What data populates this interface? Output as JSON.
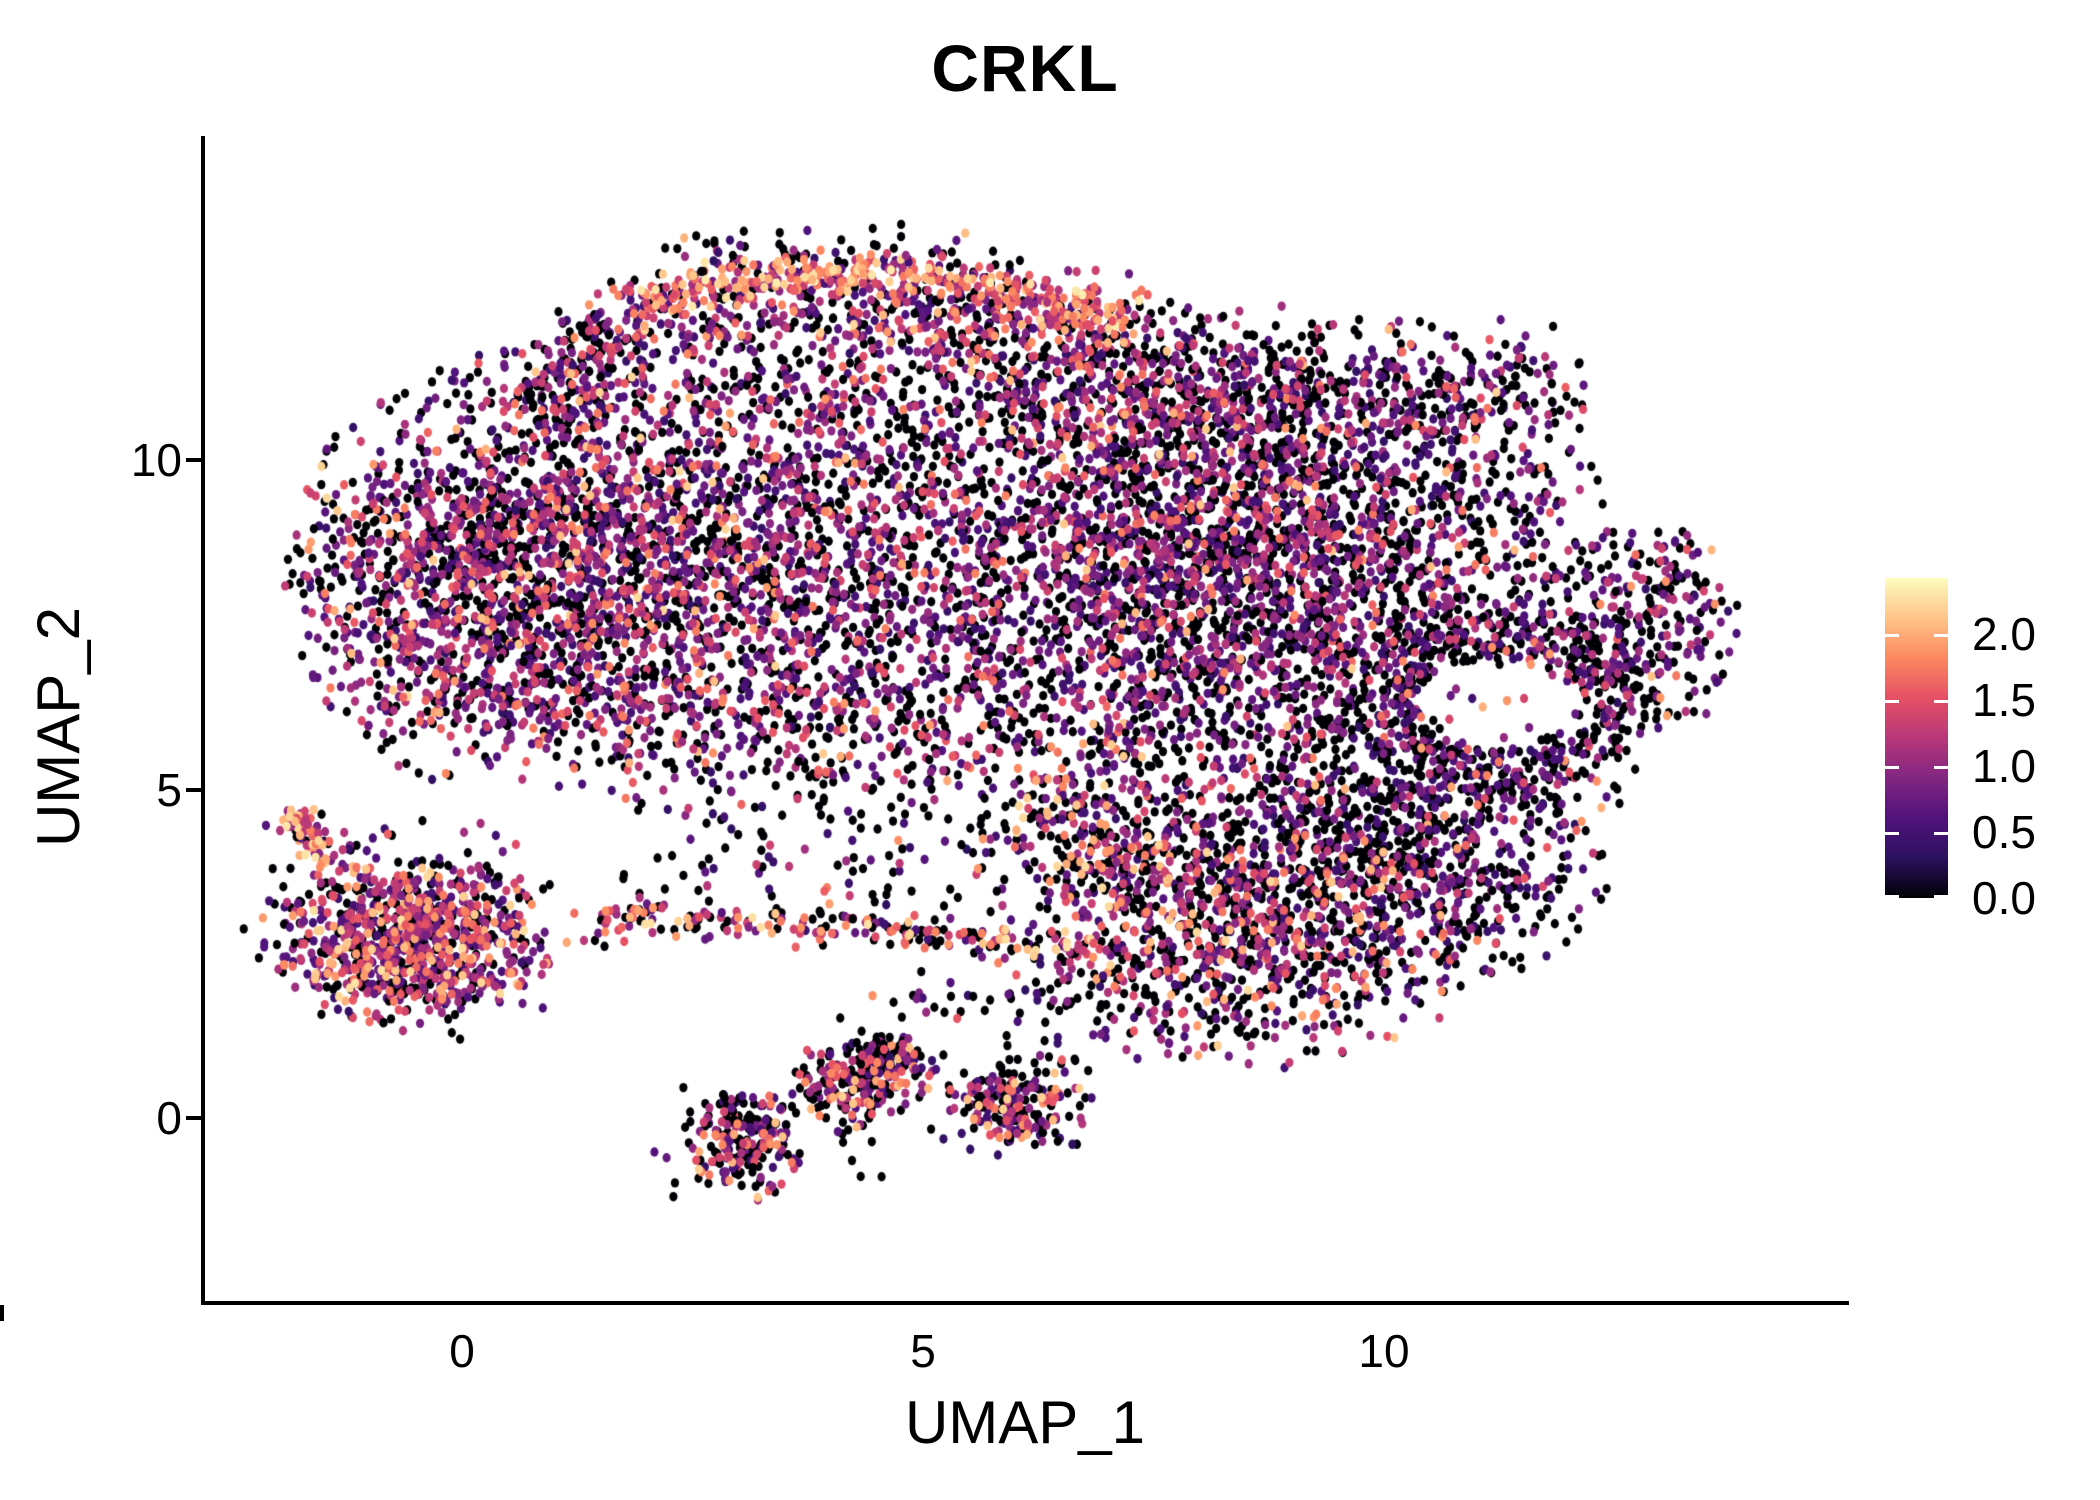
{
  "title": "CRKL",
  "axes": {
    "x_label": "UMAP_1",
    "y_label": "UMAP_2",
    "x_ticks": [
      {
        "label": "0",
        "u": 0
      },
      {
        "label": "5",
        "u": 5
      },
      {
        "label": "10",
        "u": 10
      }
    ],
    "y_ticks": [
      {
        "label": "10",
        "v": 10
      },
      {
        "label": "5",
        "v": 5
      },
      {
        "label": "0",
        "v": 0
      }
    ]
  },
  "legend": {
    "labels": [
      "2.0",
      "1.5",
      "1.0",
      "0.5",
      "0.0"
    ],
    "values": [
      2.0,
      1.5,
      1.0,
      0.5,
      0.0
    ],
    "min": 0,
    "max": 2.42
  },
  "colors": {
    "background": "#ffffff",
    "axis": "#000000",
    "text": "#000000"
  },
  "chart_data": {
    "type": "scatter",
    "title": "CRKL",
    "xlabel": "UMAP_1",
    "ylabel": "UMAP_2",
    "x_ticks": [
      0,
      5,
      10
    ],
    "y_ticks": [
      0,
      5,
      10
    ],
    "xlim": [
      -2.8,
      15.0
    ],
    "ylim": [
      -2.8,
      14.9
    ],
    "grid": false,
    "legend_position": "right",
    "point_radius_px": {
      "rx": 4.1,
      "ry": 4.7
    },
    "colorbar": {
      "orientation": "vertical",
      "range": [
        0,
        2.42
      ],
      "label_values": [
        2.0,
        1.5,
        1.0,
        0.5,
        0.0
      ],
      "colormap": "magma",
      "stops": [
        [
          0.0,
          "#000004"
        ],
        [
          0.125,
          "#2c115f"
        ],
        [
          0.25,
          "#51127c"
        ],
        [
          0.375,
          "#822681"
        ],
        [
          0.5,
          "#b73779"
        ],
        [
          0.625,
          "#e55064"
        ],
        [
          0.75,
          "#fc8961"
        ],
        [
          0.875,
          "#fec488"
        ],
        [
          1.0,
          "#fcfdbf"
        ]
      ]
    },
    "hole": {
      "cx": 11.2,
      "cy": 6.3,
      "rx": 0.82,
      "ry": 0.66
    },
    "expression_mixes": {
      "main": [
        [
          0.36,
          0,
          0
        ],
        [
          0.27,
          0.35,
          0.85
        ],
        [
          0.23,
          0.85,
          1.35
        ],
        [
          0.11,
          1.35,
          1.8
        ],
        [
          0.03,
          1.8,
          2.25
        ]
      ],
      "right": [
        [
          0.44,
          0,
          0
        ],
        [
          0.27,
          0.35,
          0.85
        ],
        [
          0.19,
          0.85,
          1.35
        ],
        [
          0.08,
          1.35,
          1.8
        ],
        [
          0.02,
          1.8,
          2.2
        ]
      ],
      "band": [
        [
          0.05,
          0,
          0
        ],
        [
          0.1,
          0.5,
          1.0
        ],
        [
          0.25,
          1.0,
          1.5
        ],
        [
          0.4,
          1.5,
          2.0
        ],
        [
          0.2,
          2.0,
          2.35
        ]
      ],
      "bandunder": [
        [
          0.3,
          0,
          0
        ],
        [
          0.2,
          0.4,
          0.9
        ],
        [
          0.25,
          0.9,
          1.4
        ],
        [
          0.17,
          1.4,
          1.9
        ],
        [
          0.08,
          1.9,
          2.25
        ]
      ],
      "bump": [
        [
          0.42,
          0,
          0
        ],
        [
          0.25,
          0.35,
          0.85
        ],
        [
          0.2,
          0.85,
          1.35
        ],
        [
          0.1,
          1.35,
          1.8
        ],
        [
          0.03,
          1.8,
          2.2
        ]
      ],
      "dark": [
        [
          0.55,
          0,
          0
        ],
        [
          0.27,
          0.3,
          0.8
        ],
        [
          0.13,
          0.8,
          1.3
        ],
        [
          0.04,
          1.3,
          1.7
        ],
        [
          0.01,
          1.7,
          2.0
        ]
      ],
      "tip": [
        [
          0.45,
          0,
          0
        ],
        [
          0.3,
          0.4,
          0.9
        ],
        [
          0.18,
          0.9,
          1.4
        ],
        [
          0.05,
          1.4,
          1.9
        ],
        [
          0.02,
          1.9,
          2.2
        ]
      ],
      "belt": [
        [
          0.45,
          0,
          0
        ],
        [
          0.25,
          0.35,
          0.85
        ],
        [
          0.18,
          0.85,
          1.35
        ],
        [
          0.09,
          1.35,
          1.8
        ],
        [
          0.03,
          1.8,
          2.2
        ]
      ],
      "diag": [
        [
          0.4,
          0,
          0
        ],
        [
          0.16,
          0.4,
          0.9
        ],
        [
          0.18,
          0.9,
          1.4
        ],
        [
          0.16,
          1.4,
          1.9
        ],
        [
          0.1,
          1.9,
          2.25
        ]
      ],
      "wing": [
        [
          0.42,
          0,
          0
        ],
        [
          0.21,
          0.35,
          0.85
        ],
        [
          0.19,
          0.85,
          1.35
        ],
        [
          0.12,
          1.35,
          1.85
        ],
        [
          0.06,
          1.85,
          2.25
        ]
      ],
      "sparse": [
        [
          0.55,
          0,
          0
        ],
        [
          0.25,
          0.3,
          0.8
        ],
        [
          0.13,
          0.8,
          1.3
        ],
        [
          0.05,
          1.3,
          1.8
        ],
        [
          0.02,
          1.8,
          2.1
        ]
      ],
      "bridge": [
        [
          0.33,
          0,
          0
        ],
        [
          0.15,
          0.4,
          0.9
        ],
        [
          0.2,
          0.9,
          1.4
        ],
        [
          0.2,
          1.4,
          1.9
        ],
        [
          0.12,
          1.9,
          2.3
        ]
      ],
      "leftc": [
        [
          0.25,
          0,
          0
        ],
        [
          0.25,
          0.4,
          0.9
        ],
        [
          0.28,
          0.9,
          1.4
        ],
        [
          0.16,
          1.4,
          1.9
        ],
        [
          0.06,
          1.9,
          2.3
        ]
      ],
      "leftfringe": [
        [
          0.4,
          0,
          0
        ],
        [
          0.25,
          0.35,
          0.85
        ],
        [
          0.2,
          0.85,
          1.35
        ],
        [
          0.1,
          1.35,
          1.85
        ],
        [
          0.05,
          1.85,
          2.2
        ]
      ],
      "arm": [
        [
          0.1,
          0,
          0
        ],
        [
          0.15,
          0.5,
          1.0
        ],
        [
          0.25,
          1.0,
          1.5
        ],
        [
          0.32,
          1.5,
          2.0
        ],
        [
          0.18,
          2.0,
          2.3
        ]
      ],
      "snake": [
        [
          0.42,
          0,
          0
        ],
        [
          0.18,
          0.35,
          0.85
        ],
        [
          0.19,
          0.85,
          1.35
        ],
        [
          0.12,
          1.35,
          1.8
        ],
        [
          0.09,
          1.8,
          2.2
        ]
      ]
    },
    "clusters": [
      {
        "name": "main-left",
        "shape": "gauss",
        "cx": 2.0,
        "cy": 8.6,
        "sx": 1.9,
        "sy": 1.6,
        "trunc": 2.1,
        "n": 2500,
        "mix": "main"
      },
      {
        "name": "main-left-edge",
        "shape": "gauss",
        "cx": 0.2,
        "cy": 7.6,
        "sx": 1.0,
        "sy": 1.3,
        "trunc": 2.0,
        "n": 700,
        "mix": "main"
      },
      {
        "name": "main-right",
        "shape": "gauss",
        "cx": 8.2,
        "cy": 8.5,
        "sx": 2.1,
        "sy": 1.5,
        "trunc": 2.15,
        "n": 3100,
        "mix": "right"
      },
      {
        "name": "top-band",
        "shape": "strip",
        "pts": [
          [
            1.8,
            12.45
          ],
          [
            3.2,
            12.8
          ],
          [
            4.8,
            12.85
          ],
          [
            6.3,
            12.5
          ],
          [
            7.2,
            12.1
          ]
        ],
        "sd": 0.16,
        "n": 380,
        "mix": "band"
      },
      {
        "name": "top-band-under",
        "shape": "strip",
        "pts": [
          [
            1.9,
            12.0
          ],
          [
            3.2,
            12.35
          ],
          [
            4.8,
            12.4
          ],
          [
            6.3,
            12.05
          ],
          [
            7.2,
            11.65
          ]
        ],
        "sd": 0.3,
        "n": 250,
        "mix": "bandunder"
      },
      {
        "name": "top-band-over",
        "shape": "strip",
        "pts": [
          [
            2.2,
            13.05
          ],
          [
            4.0,
            13.2
          ],
          [
            6.0,
            13.0
          ]
        ],
        "sd": 0.22,
        "n": 60,
        "mix": "sparse"
      },
      {
        "name": "top-left-droop",
        "shape": "strip",
        "pts": [
          [
            1.9,
            12.3
          ],
          [
            1.2,
            11.4
          ],
          [
            0.9,
            10.6
          ]
        ],
        "sd": 0.28,
        "n": 200,
        "mix": "main"
      },
      {
        "name": "top-bump",
        "shape": "gauss",
        "cx": 5.4,
        "cy": 11.6,
        "sx": 1.5,
        "sy": 0.75,
        "trunc": 2.1,
        "n": 520,
        "mix": "bump"
      },
      {
        "name": "top-right-shelf",
        "shape": "gauss",
        "cx": 8.7,
        "cy": 11.0,
        "sx": 1.7,
        "sy": 0.7,
        "trunc": 2.1,
        "n": 650,
        "mix": "right"
      },
      {
        "name": "ne-trail",
        "shape": "strip",
        "pts": [
          [
            10.4,
            10.8
          ],
          [
            11.9,
            11.5
          ]
        ],
        "sd": 0.3,
        "n": 80,
        "mix": "dark"
      },
      {
        "name": "right-ring",
        "shape": "ring",
        "cx": 11.2,
        "cy": 6.3,
        "r": 1.3,
        "sd": 0.32,
        "squash": 0.8,
        "n": 480,
        "mix": "dark"
      },
      {
        "name": "right-tip",
        "shape": "gauss",
        "cx": 12.9,
        "cy": 7.5,
        "sx": 0.5,
        "sy": 0.8,
        "trunc": 2.0,
        "n": 240,
        "mix": "tip"
      },
      {
        "name": "hole-sparse",
        "shape": "gauss",
        "cx": 11.2,
        "cy": 6.3,
        "sx": 0.45,
        "sy": 0.38,
        "trunc": 2.0,
        "n": 14,
        "mix": "bridge",
        "ignore_hole": true
      },
      {
        "name": "mid-belt",
        "shape": "gauss",
        "cx": 4.8,
        "cy": 5.9,
        "sx": 2.3,
        "sy": 0.75,
        "trunc": 2.1,
        "n": 600,
        "mix": "belt"
      },
      {
        "name": "diag-link",
        "shape": "strip",
        "pts": [
          [
            6.2,
            4.9
          ],
          [
            7.6,
            3.4
          ]
        ],
        "sd": 0.4,
        "n": 200,
        "mix": "diag"
      },
      {
        "name": "wing-main",
        "shape": "gauss",
        "cx": 8.7,
        "cy": 3.0,
        "sx": 1.2,
        "sy": 1.05,
        "trunc": 2.15,
        "n": 1100,
        "mix": "wing"
      },
      {
        "name": "wing-east",
        "shape": "gauss",
        "cx": 10.7,
        "cy": 3.9,
        "sx": 0.85,
        "sy": 0.95,
        "trunc": 2.1,
        "n": 430,
        "mix": "dark"
      },
      {
        "name": "wing-top",
        "shape": "gauss",
        "cx": 9.5,
        "cy": 5.1,
        "sx": 1.5,
        "sy": 0.65,
        "trunc": 2.1,
        "n": 350,
        "mix": "sparse"
      },
      {
        "name": "bridge",
        "shape": "strip",
        "pts": [
          [
            1.35,
            3.05
          ],
          [
            4.3,
            2.9
          ],
          [
            7.1,
            2.55
          ]
        ],
        "sd": 0.14,
        "n": 230,
        "mix": "bridge"
      },
      {
        "name": "bridge-halo",
        "shape": "gauss",
        "cx": 4.0,
        "cy": 3.8,
        "sx": 1.8,
        "sy": 0.6,
        "trunc": 2.0,
        "n": 110,
        "mix": "sparse"
      },
      {
        "name": "left-cluster",
        "shape": "gauss",
        "cx": -0.55,
        "cy": 2.7,
        "sx": 0.72,
        "sy": 0.62,
        "trunc": 2.1,
        "n": 800,
        "mix": "leftc"
      },
      {
        "name": "left-fringe",
        "shape": "gauss",
        "cx": -0.5,
        "cy": 2.8,
        "sx": 1.0,
        "sy": 0.95,
        "trunc": 1.9,
        "n": 180,
        "mix": "leftfringe"
      },
      {
        "name": "left-arm",
        "shape": "strip",
        "pts": [
          [
            -1.85,
            4.6
          ],
          [
            -1.5,
            3.85
          ]
        ],
        "sd": 0.13,
        "n": 60,
        "mix": "arm"
      },
      {
        "name": "left-arm-tip",
        "shape": "gauss",
        "cx": -1.78,
        "cy": 4.5,
        "sx": 0.1,
        "sy": 0.12,
        "trunc": 2.0,
        "n": 25,
        "mix": "arm"
      },
      {
        "name": "snake-w",
        "shape": "gauss",
        "cx": 3.05,
        "cy": -0.35,
        "sx": 0.33,
        "sy": 0.38,
        "trunc": 2.1,
        "n": 190,
        "mix": "snake"
      },
      {
        "name": "snake-mid",
        "shape": "gauss",
        "cx": 4.35,
        "cy": 0.55,
        "sx": 0.38,
        "sy": 0.33,
        "trunc": 2.1,
        "n": 190,
        "mix": "snake"
      },
      {
        "name": "snake-mid-dark",
        "shape": "gauss",
        "cx": 4.6,
        "cy": 0.95,
        "sx": 0.22,
        "sy": 0.18,
        "trunc": 2.0,
        "n": 70,
        "mix": "dark"
      },
      {
        "name": "snake-e",
        "shape": "gauss",
        "cx": 6.0,
        "cy": 0.2,
        "sx": 0.42,
        "sy": 0.3,
        "trunc": 2.1,
        "n": 160,
        "mix": "snake"
      },
      {
        "name": "snake-trail",
        "shape": "strip",
        "pts": [
          [
            2.6,
            -0.6
          ],
          [
            3.6,
            0.1
          ],
          [
            4.6,
            0.5
          ],
          [
            5.4,
            0.2
          ],
          [
            6.6,
            0.35
          ]
        ],
        "sd": 0.5,
        "n": 110,
        "mix": "sparse"
      },
      {
        "name": "scatter-low",
        "shape": "gauss",
        "cx": 6.5,
        "cy": 1.8,
        "sx": 1.3,
        "sy": 0.5,
        "trunc": 2.0,
        "n": 90,
        "mix": "sparse"
      },
      {
        "name": "stragglers",
        "shape": "gauss",
        "cx": 3.3,
        "cy": -1.2,
        "sx": 0.25,
        "sy": 0.2,
        "trunc": 1.6,
        "n": 8,
        "mix": "snake"
      }
    ]
  }
}
